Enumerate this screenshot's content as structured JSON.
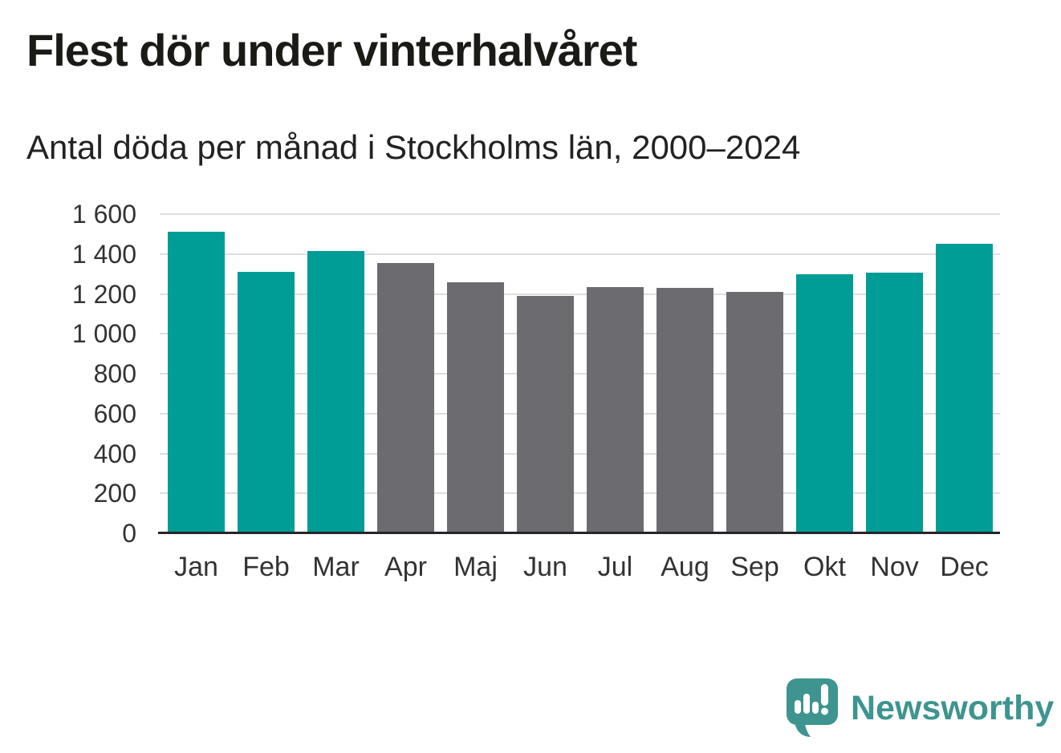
{
  "header": {
    "title": "Flest dör under vinterhalvåret",
    "subtitle": "Antal döda per månad i Stockholms län, 2000–2024"
  },
  "chart_data": {
    "type": "bar",
    "title": "Flest dör under vinterhalvåret",
    "subtitle": "Antal döda per månad i Stockholms län, 2000–2024",
    "categories": [
      "Jan",
      "Feb",
      "Mar",
      "Apr",
      "Maj",
      "Jun",
      "Jul",
      "Aug",
      "Sep",
      "Okt",
      "Nov",
      "Dec"
    ],
    "values": [
      1510,
      1310,
      1415,
      1355,
      1260,
      1190,
      1235,
      1230,
      1210,
      1300,
      1305,
      1450
    ],
    "bar_color_roles": [
      "winter",
      "winter",
      "winter",
      "summer",
      "summer",
      "summer",
      "summer",
      "summer",
      "summer",
      "winter",
      "winter",
      "winter"
    ],
    "colors": {
      "winter": "#009c96",
      "summer": "#6c6c70"
    },
    "xlabel": "",
    "ylabel": "",
    "ylim": [
      0,
      1600
    ],
    "ytick_step": 200,
    "ytick_labels": [
      "0",
      "200",
      "400",
      "600",
      "800",
      "1 000",
      "1 200",
      "1 400",
      "1 600"
    ],
    "grid": true,
    "gridline_color": "#dedede",
    "baseline_color": "#26262a",
    "legend": "none"
  },
  "footer": {
    "brand": "Newsworthy",
    "brand_color": "#3e948f",
    "logo_icon": "newsworthy-speech-bubble-chart-icon"
  }
}
